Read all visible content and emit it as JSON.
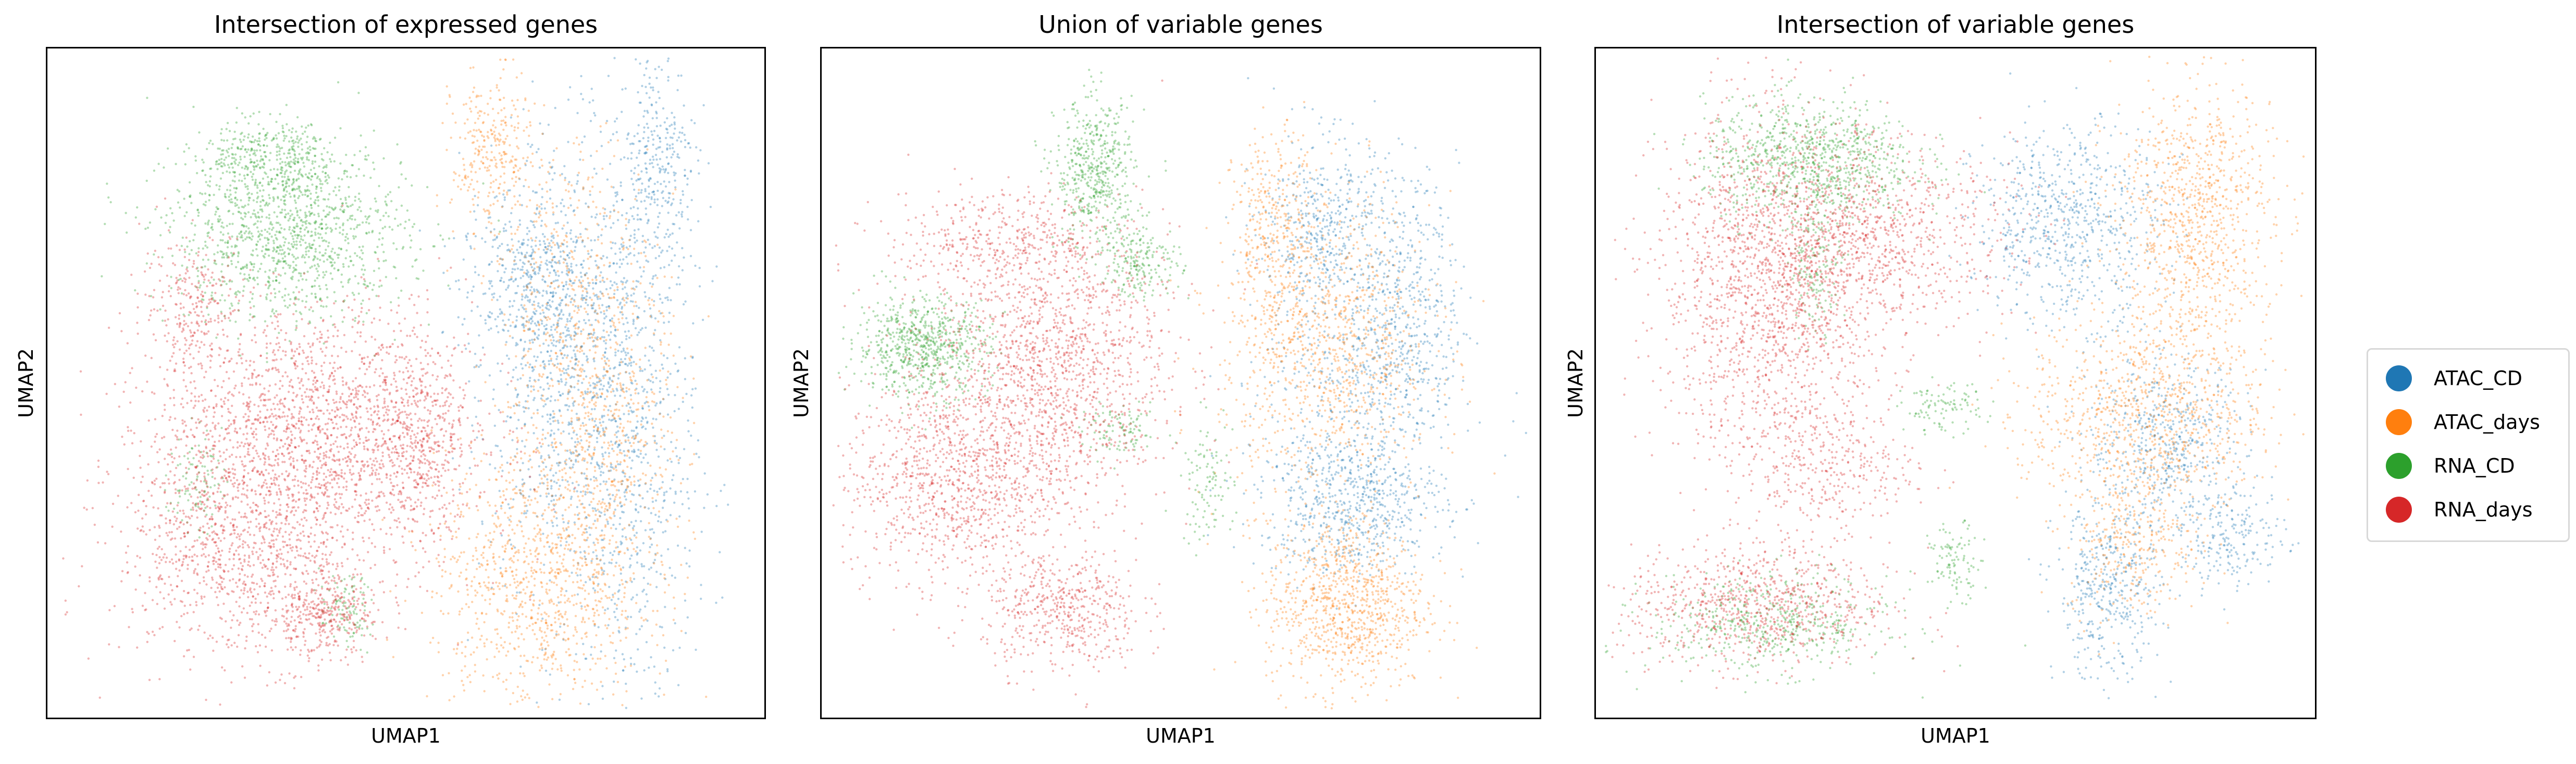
{
  "chart_data": [
    {
      "type": "scatter",
      "title": "Intersection of expressed genes",
      "xlabel": "UMAP1",
      "ylabel": "UMAP2",
      "xticks": "none",
      "yticks": "none",
      "series": [
        {
          "name": "ATAC_CD",
          "color": "#1f77b4",
          "clusters": [
            {
              "cx": 7.3,
              "cy": 5.4,
              "sx": 0.6,
              "sy": 1.8,
              "n": 900
            },
            {
              "cx": 8.4,
              "cy": 4.0,
              "sx": 0.5,
              "sy": 2.4,
              "n": 800
            },
            {
              "cx": 8.8,
              "cy": 8.6,
              "sx": 0.3,
              "sy": 0.9,
              "n": 300
            },
            {
              "cx": 6.8,
              "cy": 6.6,
              "sx": 0.5,
              "sy": 0.6,
              "n": 300
            }
          ]
        },
        {
          "name": "ATAC_days",
          "color": "#ff7f0e",
          "clusters": [
            {
              "cx": 7.0,
              "cy": 1.8,
              "sx": 0.8,
              "sy": 1.1,
              "n": 1000
            },
            {
              "cx": 6.3,
              "cy": 8.7,
              "sx": 0.3,
              "sy": 0.7,
              "n": 300
            },
            {
              "cx": 7.6,
              "cy": 6.2,
              "sx": 0.6,
              "sy": 1.4,
              "n": 500
            },
            {
              "cx": 8.1,
              "cy": 4.0,
              "sx": 0.6,
              "sy": 1.2,
              "n": 400
            }
          ]
        },
        {
          "name": "RNA_CD",
          "color": "#2ca02c",
          "clusters": [
            {
              "cx": 3.2,
              "cy": 7.4,
              "sx": 0.9,
              "sy": 0.7,
              "n": 1200
            },
            {
              "cx": 2.6,
              "cy": 8.7,
              "sx": 0.4,
              "sy": 0.3,
              "n": 200
            },
            {
              "cx": 3.4,
              "cy": 8.6,
              "sx": 0.3,
              "sy": 0.3,
              "n": 150
            },
            {
              "cx": 4.1,
              "cy": 1.3,
              "sx": 0.2,
              "sy": 0.3,
              "n": 100
            },
            {
              "cx": 1.8,
              "cy": 3.4,
              "sx": 0.2,
              "sy": 0.4,
              "n": 100
            }
          ]
        },
        {
          "name": "RNA_days",
          "color": "#d62728",
          "clusters": [
            {
              "cx": 3.6,
              "cy": 4.3,
              "sx": 1.2,
              "sy": 1.0,
              "n": 1800
            },
            {
              "cx": 2.6,
              "cy": 2.3,
              "sx": 1.0,
              "sy": 0.9,
              "n": 1100
            },
            {
              "cx": 3.7,
              "cy": 1.2,
              "sx": 0.4,
              "sy": 0.3,
              "n": 300
            },
            {
              "cx": 1.8,
              "cy": 6.3,
              "sx": 0.4,
              "sy": 0.6,
              "n": 250
            },
            {
              "cx": 5.2,
              "cy": 3.9,
              "sx": 0.4,
              "sy": 0.9,
              "n": 400
            }
          ]
        }
      ]
    },
    {
      "type": "scatter",
      "title": "Union of variable genes",
      "xlabel": "UMAP1",
      "ylabel": "UMAP2",
      "xticks": "none",
      "yticks": "none",
      "series": [
        {
          "name": "ATAC_CD",
          "color": "#1f77b4",
          "clusters": [
            {
              "cx": 7.6,
              "cy": 3.1,
              "sx": 0.7,
              "sy": 0.6,
              "n": 700
            },
            {
              "cx": 7.2,
              "cy": 7.4,
              "sx": 0.5,
              "sy": 0.8,
              "n": 500
            },
            {
              "cx": 8.4,
              "cy": 6.4,
              "sx": 0.4,
              "sy": 1.0,
              "n": 400
            },
            {
              "cx": 7.8,
              "cy": 5.0,
              "sx": 0.8,
              "sy": 0.6,
              "n": 300
            }
          ]
        },
        {
          "name": "ATAC_days",
          "color": "#ff7f0e",
          "clusters": [
            {
              "cx": 7.5,
              "cy": 1.4,
              "sx": 0.6,
              "sy": 0.7,
              "n": 900
            },
            {
              "cx": 7.2,
              "cy": 5.6,
              "sx": 0.8,
              "sy": 1.2,
              "n": 1000
            },
            {
              "cx": 6.4,
              "cy": 7.5,
              "sx": 0.3,
              "sy": 0.8,
              "n": 300
            }
          ]
        },
        {
          "name": "RNA_CD",
          "color": "#2ca02c",
          "clusters": [
            {
              "cx": 1.1,
              "cy": 5.6,
              "sx": 0.5,
              "sy": 0.4,
              "n": 700
            },
            {
              "cx": 3.7,
              "cy": 8.4,
              "sx": 0.3,
              "sy": 0.6,
              "n": 500
            },
            {
              "cx": 4.4,
              "cy": 7.0,
              "sx": 0.3,
              "sy": 0.3,
              "n": 200
            },
            {
              "cx": 4.1,
              "cy": 4.2,
              "sx": 0.3,
              "sy": 0.2,
              "n": 100
            },
            {
              "cx": 5.4,
              "cy": 3.4,
              "sx": 0.2,
              "sy": 0.5,
              "n": 100
            }
          ]
        },
        {
          "name": "RNA_days",
          "color": "#d62728",
          "clusters": [
            {
              "cx": 3.0,
              "cy": 5.2,
              "sx": 0.9,
              "sy": 1.1,
              "n": 1500
            },
            {
              "cx": 1.5,
              "cy": 3.4,
              "sx": 0.8,
              "sy": 0.8,
              "n": 900
            },
            {
              "cx": 3.2,
              "cy": 1.3,
              "sx": 0.6,
              "sy": 0.5,
              "n": 500
            },
            {
              "cx": 2.3,
              "cy": 7.3,
              "sx": 0.9,
              "sy": 0.4,
              "n": 400
            }
          ]
        }
      ]
    },
    {
      "type": "scatter",
      "title": "Intersection of variable genes",
      "xlabel": "UMAP1",
      "ylabel": "UMAP2",
      "xticks": "none",
      "yticks": "none",
      "series": [
        {
          "name": "ATAC_CD",
          "color": "#1f77b4",
          "clusters": [
            {
              "cx": 6.7,
              "cy": 7.6,
              "sx": 0.7,
              "sy": 0.8,
              "n": 700
            },
            {
              "cx": 8.2,
              "cy": 4.0,
              "sx": 0.6,
              "sy": 0.7,
              "n": 500
            },
            {
              "cx": 7.3,
              "cy": 1.6,
              "sx": 0.4,
              "sy": 0.7,
              "n": 400
            },
            {
              "cx": 9.2,
              "cy": 2.5,
              "sx": 0.4,
              "sy": 0.4,
              "n": 200
            }
          ]
        },
        {
          "name": "ATAC_days",
          "color": "#ff7f0e",
          "clusters": [
            {
              "cx": 8.6,
              "cy": 7.7,
              "sx": 0.6,
              "sy": 1.1,
              "n": 900
            },
            {
              "cx": 7.9,
              "cy": 4.5,
              "sx": 0.9,
              "sy": 0.8,
              "n": 900
            },
            {
              "cx": 7.7,
              "cy": 2.4,
              "sx": 0.5,
              "sy": 0.6,
              "n": 300
            }
          ]
        },
        {
          "name": "RNA_CD",
          "color": "#2ca02c",
          "clusters": [
            {
              "cx": 2.8,
              "cy": 8.6,
              "sx": 0.8,
              "sy": 0.5,
              "n": 900
            },
            {
              "cx": 2.2,
              "cy": 1.1,
              "sx": 0.9,
              "sy": 0.4,
              "n": 500
            },
            {
              "cx": 4.8,
              "cy": 4.6,
              "sx": 0.3,
              "sy": 0.2,
              "n": 100
            },
            {
              "cx": 5.0,
              "cy": 2.1,
              "sx": 0.2,
              "sy": 0.3,
              "n": 100
            },
            {
              "cx": 2.9,
              "cy": 6.9,
              "sx": 0.2,
              "sy": 0.5,
              "n": 150
            }
          ]
        },
        {
          "name": "RNA_days",
          "color": "#d62728",
          "clusters": [
            {
              "cx": 2.3,
              "cy": 6.6,
              "sx": 0.9,
              "sy": 1.4,
              "n": 1800
            },
            {
              "cx": 3.9,
              "cy": 7.4,
              "sx": 1.0,
              "sy": 0.7,
              "n": 700
            },
            {
              "cx": 2.0,
              "cy": 1.4,
              "sx": 1.0,
              "sy": 0.5,
              "n": 800
            },
            {
              "cx": 3.0,
              "cy": 3.6,
              "sx": 0.7,
              "sy": 0.5,
              "n": 300
            }
          ]
        }
      ]
    }
  ],
  "legend": {
    "items": [
      {
        "label": "ATAC_CD",
        "color": "#1f77b4"
      },
      {
        "label": "ATAC_days",
        "color": "#ff7f0e"
      },
      {
        "label": "RNA_CD",
        "color": "#2ca02c"
      },
      {
        "label": "RNA_days",
        "color": "#d62728"
      }
    ]
  }
}
